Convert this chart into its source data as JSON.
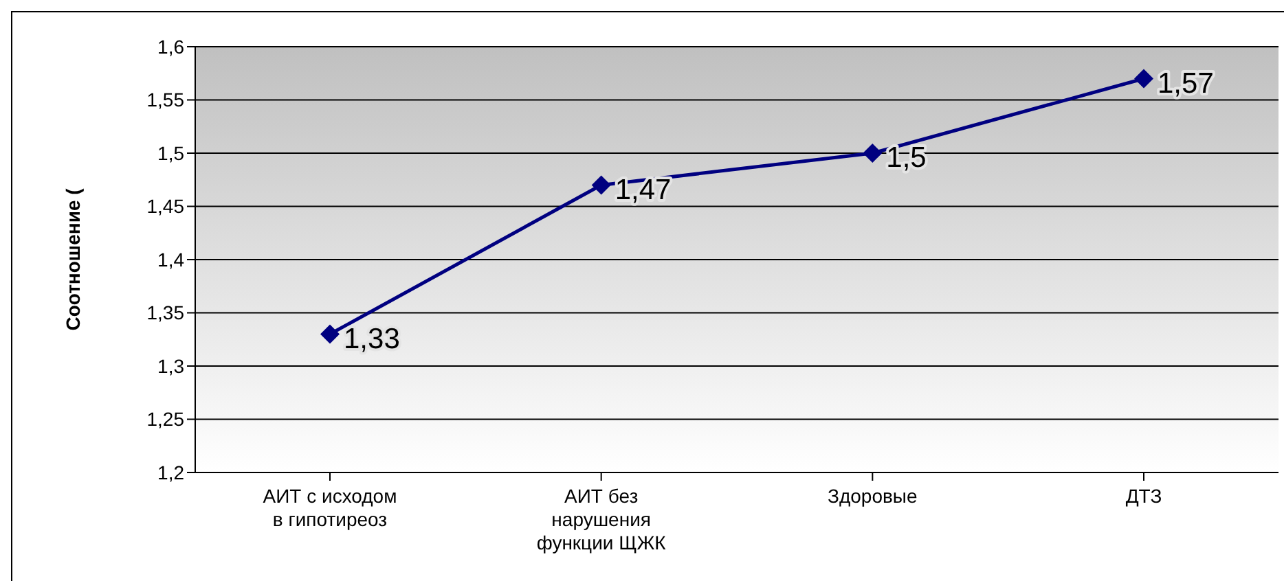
{
  "chart_data": {
    "type": "line",
    "ylabel": "Соотношение (",
    "categories": [
      "АИТ с исходом в гипотиреоз",
      "АИТ без нарушения функции ЩЖК",
      "Здоровые",
      "ДТЗ"
    ],
    "series": [
      {
        "color": "#000080",
        "values": [
          1.33,
          1.47,
          1.5,
          1.57
        ],
        "value_labels": [
          "1,33",
          "1,47",
          "1,5",
          "1,57"
        ]
      }
    ],
    "ylim": [
      1.2,
      1.6
    ],
    "yticks": [
      {
        "value": 1.2,
        "label": "1,2"
      },
      {
        "value": 1.25,
        "label": "1,25"
      },
      {
        "value": 1.3,
        "label": "1,3"
      },
      {
        "value": 1.35,
        "label": "1,35"
      },
      {
        "value": 1.4,
        "label": "1,4"
      },
      {
        "value": 1.45,
        "label": "1,45"
      },
      {
        "value": 1.5,
        "label": "1,5"
      },
      {
        "value": 1.55,
        "label": "1,55"
      },
      {
        "value": 1.6,
        "label": "1,6"
      }
    ],
    "grid": "y",
    "legend": false,
    "marker": "diamond",
    "line_style": "solid"
  }
}
